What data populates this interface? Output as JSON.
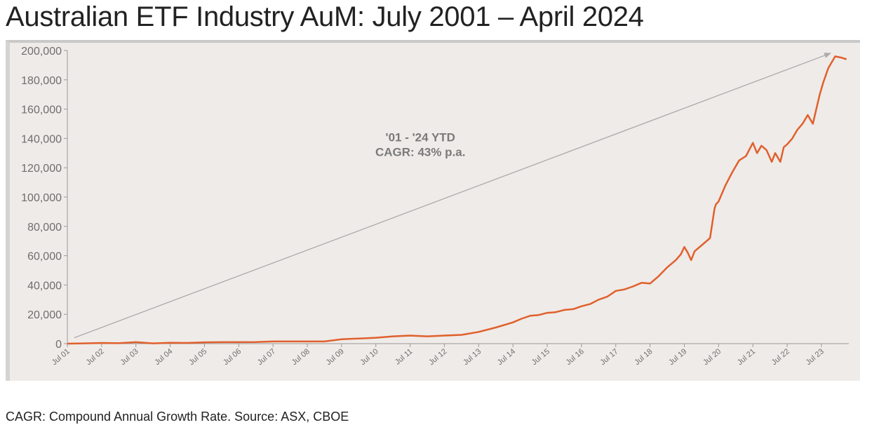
{
  "title": "Australian ETF Industry AuM: July 2001 – April 2024",
  "footnote": "CAGR: Compound Annual Growth Rate. Source: ASX, CBOE",
  "colors": {
    "line": "#e0602d",
    "arrow": "#ababab",
    "background": "#efebe8",
    "axis": "#9a9a9a"
  },
  "chart_data": {
    "type": "line",
    "title": "Australian ETF Industry AuM: July 2001 – April 2024",
    "xlabel": "",
    "ylabel": "",
    "ylim": [
      0,
      200000
    ],
    "yticks": [
      0,
      20000,
      40000,
      60000,
      80000,
      100000,
      120000,
      140000,
      160000,
      180000,
      200000
    ],
    "ytick_labels": [
      "0",
      "20,000",
      "40,000",
      "60,000",
      "80,000",
      "100,000",
      "120,000",
      "140,000",
      "160,000",
      "180,000",
      "200,000"
    ],
    "xlim": [
      2001.5,
      2024.3
    ],
    "xticks": [
      2001.5,
      2002.5,
      2003.5,
      2004.5,
      2005.5,
      2006.5,
      2007.5,
      2008.5,
      2009.5,
      2010.5,
      2011.5,
      2012.5,
      2013.5,
      2014.5,
      2015.5,
      2016.5,
      2017.5,
      2018.5,
      2019.5,
      2020.5,
      2021.5,
      2022.5,
      2023.5
    ],
    "xtick_labels": [
      "Jul 01",
      "Jul 02",
      "Jul 03",
      "Jul 04",
      "Jul 05",
      "Jul 06",
      "Jul 07",
      "Jul 08",
      "Jul 09",
      "Jul 10",
      "Jul 11",
      "Jul 12",
      "Jul 13",
      "Jul 14",
      "Jul 15",
      "Jul 16",
      "Jul 17",
      "Jul 18",
      "Jul 19",
      "Jul 20",
      "Jul 21",
      "Jul 22",
      "Jul 23"
    ],
    "grid": false,
    "series": [
      {
        "x": [
          2001.5,
          2002.0,
          2002.5,
          2003.0,
          2003.5,
          2004.0,
          2004.5,
          2005.0,
          2005.5,
          2006.0,
          2006.5,
          2007.0,
          2007.5,
          2008.0,
          2008.5,
          2009.0,
          2009.5,
          2010.0,
          2010.5,
          2011.0,
          2011.5,
          2012.0,
          2012.5,
          2013.0,
          2013.5,
          2014.0,
          2014.5,
          2014.75,
          2015.0,
          2015.25,
          2015.5,
          2015.75,
          2016.0,
          2016.25,
          2016.5,
          2016.75,
          2017.0,
          2017.25,
          2017.5,
          2017.75,
          2018.0,
          2018.25,
          2018.5,
          2018.75,
          2019.0,
          2019.25,
          2019.4,
          2019.5,
          2019.6,
          2019.7,
          2019.8,
          2020.0,
          2020.25,
          2020.38,
          2020.42,
          2020.5,
          2020.7,
          2020.9,
          2021.1,
          2021.3,
          2021.5,
          2021.62,
          2021.75,
          2021.9,
          2022.05,
          2022.15,
          2022.3,
          2022.4,
          2022.5,
          2022.65,
          2022.8,
          2022.95,
          2023.1,
          2023.25,
          2023.45,
          2023.55,
          2023.7,
          2023.9,
          2024.1,
          2024.23
        ],
        "values": [
          0,
          200,
          500,
          300,
          1000,
          200,
          600,
          500,
          900,
          1000,
          1000,
          1100,
          1500,
          1500,
          1500,
          1500,
          3000,
          3500,
          4000,
          5000,
          5500,
          5000,
          5500,
          6000,
          8000,
          11000,
          14500,
          17000,
          19000,
          19500,
          21000,
          21500,
          23000,
          23500,
          25500,
          27000,
          30000,
          32000,
          36000,
          37000,
          39000,
          41500,
          41000,
          46000,
          52000,
          57000,
          61000,
          66000,
          62000,
          57000,
          63000,
          67000,
          72000,
          92000,
          95000,
          97000,
          108000,
          117000,
          125000,
          128000,
          137000,
          130000,
          135000,
          132000,
          124000,
          130000,
          124000,
          134000,
          136000,
          140000,
          146000,
          150000,
          156000,
          150000,
          170000,
          178000,
          188000,
          196000,
          195000,
          194000
        ]
      }
    ],
    "annotations": [
      {
        "text": "'01 - '24 YTD",
        "x": 2011.8,
        "y": 138000
      },
      {
        "text": "CAGR: 43% p.a.",
        "x": 2011.8,
        "y": 128000
      }
    ],
    "trend_arrow": {
      "from": [
        2001.7,
        4000
      ],
      "to": [
        2023.75,
        198000
      ]
    }
  }
}
